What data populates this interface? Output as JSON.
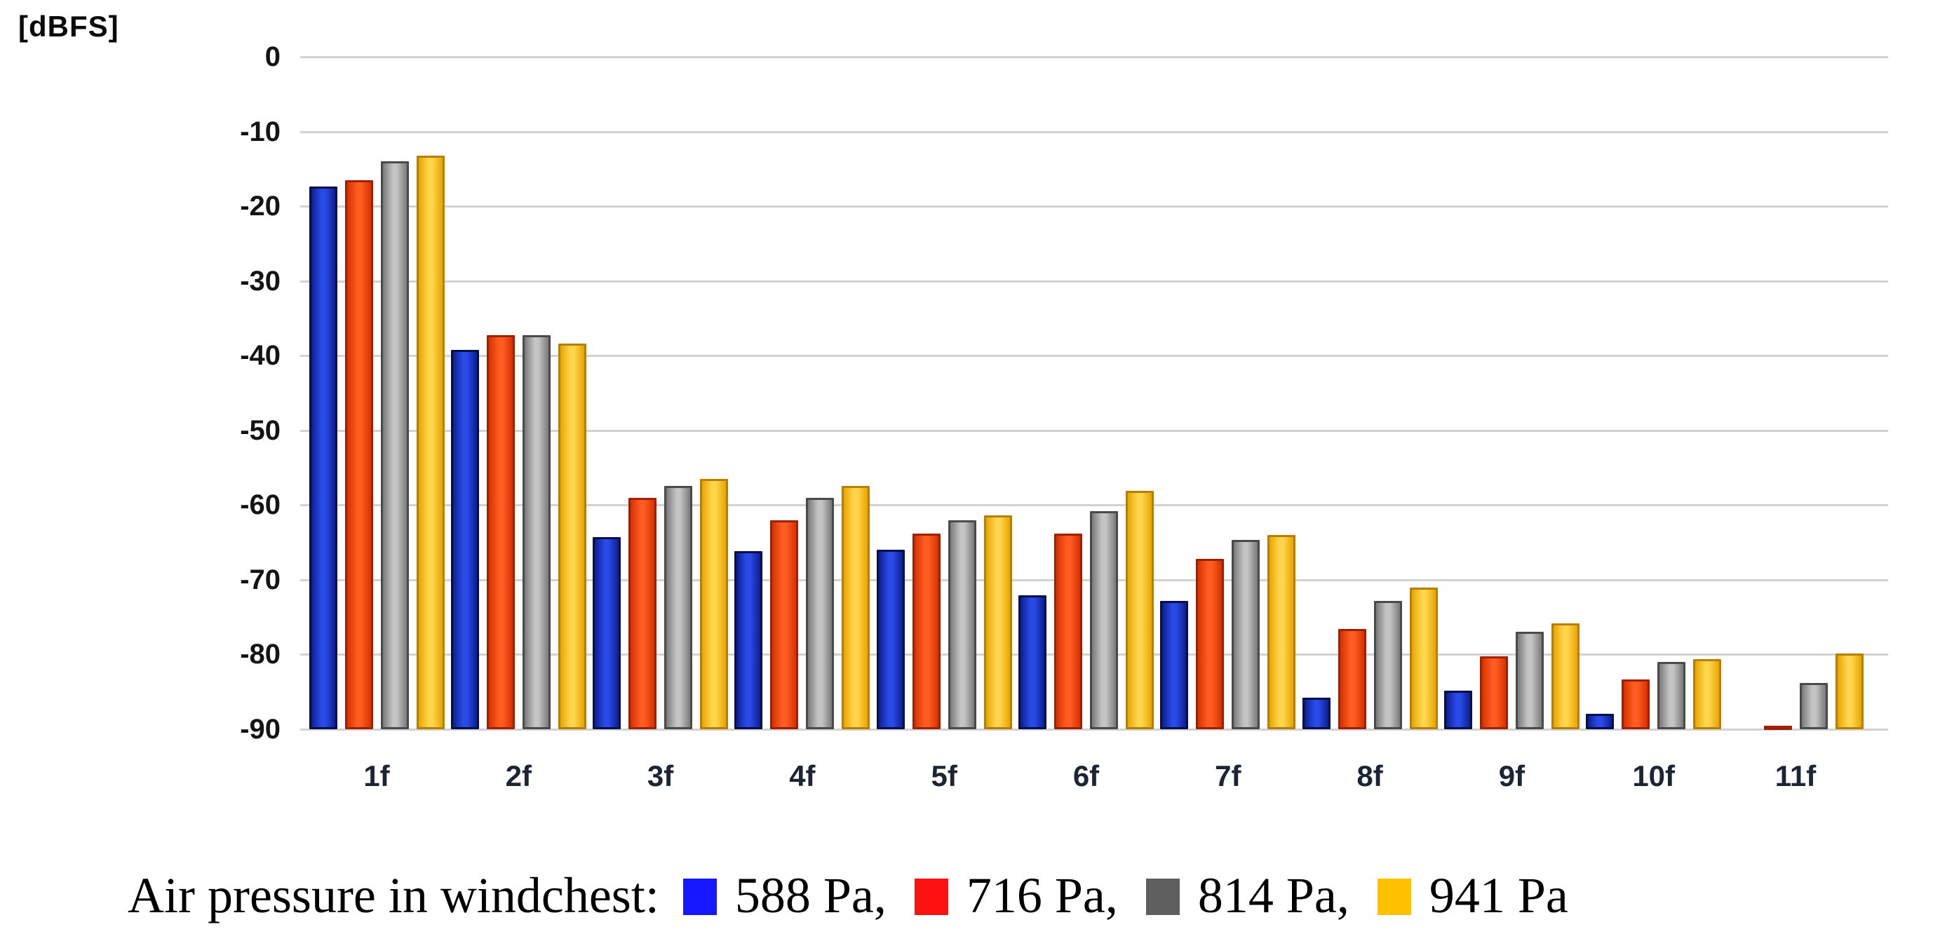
{
  "chart_data": {
    "type": "bar",
    "title": "",
    "xlabel": "",
    "ylabel": "[dBFS]",
    "ylim": [
      -90,
      0
    ],
    "y_ticks": [
      0,
      -10,
      -20,
      -30,
      -40,
      -50,
      -60,
      -70,
      -80,
      -90
    ],
    "y_tick_labels": [
      "0",
      "-10",
      "-20",
      "-30",
      "-40",
      "-50",
      "-60",
      "-70",
      "-80",
      "-90"
    ],
    "grid": true,
    "gridline_color": "#d2d2d2",
    "legend_position": "bottom",
    "categories": [
      "1f",
      "2f",
      "3f",
      "4f",
      "5f",
      "6f",
      "7f",
      "8f",
      "9f",
      "10f",
      "11f"
    ],
    "series": [
      {
        "name": "588 Pa",
        "legend_color": "#1616ff",
        "bar_color_mid": "#2a4ae8",
        "bar_color_edge": "#0b1f8f",
        "bar_border": "#061047",
        "values": [
          -17.4,
          -39.2,
          -64.3,
          -66.2,
          -66.0,
          -72.1,
          -72.8,
          -85.8,
          -84.8,
          -87.9,
          null
        ]
      },
      {
        "name": "716 Pa",
        "legend_color": "#fe1111",
        "bar_color_mid": "#ff5c22",
        "bar_color_edge": "#d63200",
        "bar_border": "#9e2000",
        "values": [
          -16.5,
          -37.3,
          -59.0,
          -62.0,
          -63.8,
          -63.8,
          -67.2,
          -76.6,
          -80.2,
          -83.3,
          -89.5
        ]
      },
      {
        "name": "814 Pa",
        "legend_color": "#5f5f5f",
        "bar_color_mid": "#c4c4c4",
        "bar_color_edge": "#7a7a7a",
        "bar_border": "#4a4a4a",
        "values": [
          -14.0,
          -37.3,
          -57.4,
          -59.0,
          -62.0,
          -60.8,
          -64.7,
          -72.8,
          -77.0,
          -81.0,
          -83.8
        ]
      },
      {
        "name": "941 Pa",
        "legend_color": "#ffc000",
        "bar_color_mid": "#ffd54d",
        "bar_color_edge": "#e8a500",
        "bar_border": "#b57f00",
        "values": [
          -13.2,
          -38.4,
          -56.5,
          -57.4,
          -61.4,
          -58.1,
          -64.0,
          -71.0,
          -75.8,
          -80.6,
          -79.9
        ]
      }
    ]
  },
  "axis": {
    "unit_label": "[dBFS]"
  },
  "legend": {
    "prefix": "Air pressure in windchest:",
    "items": [
      {
        "label": "588 Pa,",
        "color": "#1616ff"
      },
      {
        "label": "716 Pa,",
        "color": "#fe1111"
      },
      {
        "label": "814 Pa,",
        "color": "#5f5f5f"
      },
      {
        "label": "941 Pa",
        "color": "#ffc000"
      }
    ]
  }
}
